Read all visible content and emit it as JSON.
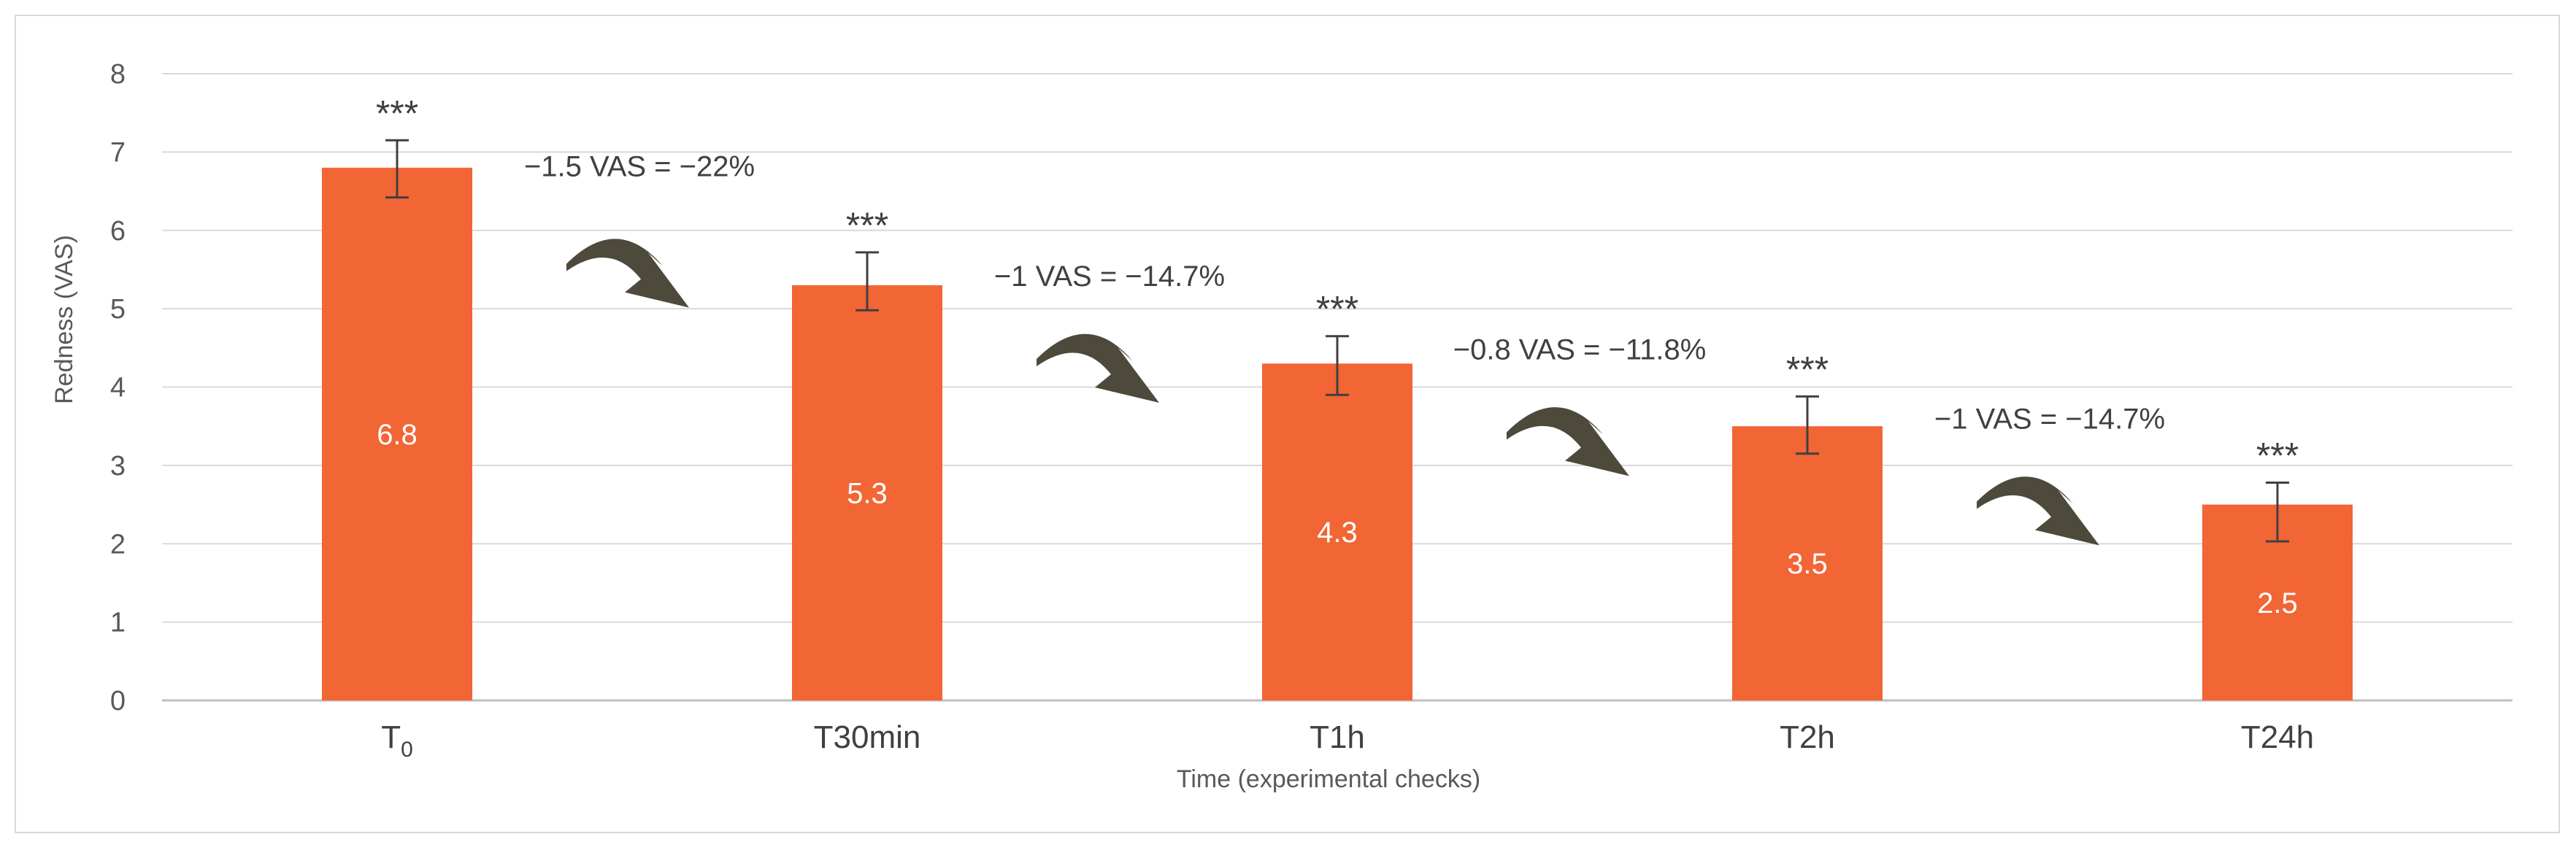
{
  "chart_data": {
    "type": "bar",
    "title": "",
    "xlabel": "Time  (experimental  checks)",
    "ylabel": "Redness  (VAS)",
    "ylim": [
      0,
      8
    ],
    "yticks": [
      0,
      1,
      2,
      3,
      4,
      5,
      6,
      7,
      8
    ],
    "grid": true,
    "categories": [
      {
        "base": "T",
        "sub": "0"
      },
      {
        "base": "T30min",
        "sub": ""
      },
      {
        "base": "T1h",
        "sub": ""
      },
      {
        "base": "T2h",
        "sub": ""
      },
      {
        "base": "T24h",
        "sub": ""
      }
    ],
    "values": [
      6.8,
      5.3,
      4.3,
      3.5,
      2.5
    ],
    "value_labels": [
      "6.8",
      "5.3",
      "4.3",
      "3.5",
      "2.5"
    ],
    "error_upper": [
      7.15,
      5.72,
      4.65,
      3.88,
      2.78
    ],
    "error_lower": [
      6.42,
      4.98,
      3.9,
      3.15,
      2.03
    ],
    "significance": [
      "***",
      "***",
      "***",
      "***",
      "***"
    ],
    "bar_color": "#f26534",
    "arrow_color": "#4d4a3c",
    "annotations": [
      "−1.5 VAS = −22%",
      "−1 VAS = −14.7%",
      "−0.8 VAS = −11.8%",
      "−1 VAS = −14.7%"
    ]
  }
}
